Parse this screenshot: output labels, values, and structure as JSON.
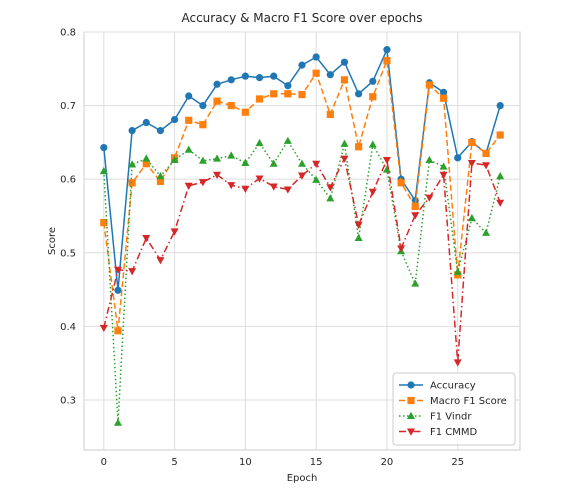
{
  "chart_data": {
    "type": "line",
    "title": "Accuracy & Macro F1 Score over epochs",
    "xlabel": "Epoch",
    "ylabel": "Score",
    "xlim": [
      -1.4,
      29.4
    ],
    "ylim": [
      0.232,
      0.8
    ],
    "xticks": [
      0,
      5,
      10,
      15,
      20,
      25
    ],
    "yticks": [
      0.3,
      0.4,
      0.5,
      0.6,
      0.7,
      0.8
    ],
    "grid": true,
    "legend_position": "bottom-right",
    "x": [
      0,
      1,
      2,
      3,
      4,
      5,
      6,
      7,
      8,
      9,
      10,
      11,
      12,
      13,
      14,
      15,
      16,
      17,
      18,
      19,
      20,
      21,
      22,
      23,
      24,
      25,
      26,
      27,
      28
    ],
    "series": [
      {
        "name": "Accuracy",
        "color": "#1f77b4",
        "marker": "circle",
        "linestyle": "solid",
        "values": [
          0.643,
          0.449,
          0.666,
          0.677,
          0.666,
          0.681,
          0.713,
          0.7,
          0.729,
          0.735,
          0.74,
          0.738,
          0.74,
          0.727,
          0.755,
          0.766,
          0.742,
          0.759,
          0.716,
          0.733,
          0.776,
          0.6,
          0.571,
          0.731,
          0.718,
          0.629,
          0.651,
          0.635,
          0.7
        ]
      },
      {
        "name": "Macro F1 Score",
        "color": "#ff7f0e",
        "marker": "square",
        "linestyle": "dashed",
        "values": [
          0.541,
          0.394,
          0.595,
          0.621,
          0.597,
          0.629,
          0.68,
          0.674,
          0.706,
          0.7,
          0.691,
          0.709,
          0.716,
          0.716,
          0.715,
          0.744,
          0.688,
          0.735,
          0.644,
          0.712,
          0.761,
          0.595,
          0.563,
          0.728,
          0.71,
          0.47,
          0.65,
          0.635,
          0.66
        ]
      },
      {
        "name": "F1 Vindr",
        "color": "#2ca02c",
        "marker": "triangle-up",
        "linestyle": "dotted",
        "values": [
          0.611,
          0.269,
          0.62,
          0.628,
          0.604,
          0.626,
          0.64,
          0.625,
          0.628,
          0.632,
          0.622,
          0.649,
          0.621,
          0.652,
          0.621,
          0.599,
          0.574,
          0.648,
          0.52,
          0.647,
          0.613,
          0.502,
          0.458,
          0.626,
          0.617,
          0.474,
          0.547,
          0.527,
          0.604
        ]
      },
      {
        "name": "F1 CMMD",
        "color": "#d62728",
        "marker": "triangle-down",
        "linestyle": "dashdot",
        "values": [
          0.398,
          0.477,
          0.475,
          0.52,
          0.49,
          0.529,
          0.591,
          0.596,
          0.606,
          0.592,
          0.587,
          0.601,
          0.59,
          0.586,
          0.605,
          0.621,
          0.589,
          0.628,
          0.538,
          0.583,
          0.626,
          0.506,
          0.551,
          0.575,
          0.606,
          0.351,
          0.622,
          0.619,
          0.568
        ]
      }
    ]
  }
}
